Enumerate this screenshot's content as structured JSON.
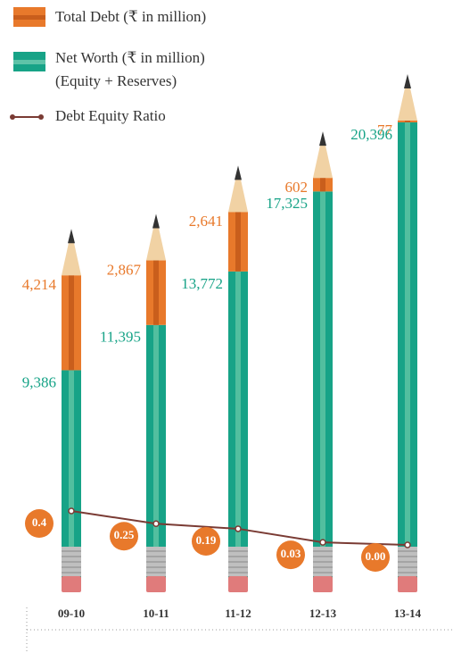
{
  "chart_data": {
    "type": "pencil-bar",
    "categories": [
      "09-10",
      "10-11",
      "11-12",
      "12-13",
      "13-14"
    ],
    "series": [
      {
        "name": "Net Worth (₹ in million)",
        "note": "(Equity + Reserves)",
        "color": "#17a387",
        "values": [
          9386,
          11395,
          13772,
          17325,
          20396
        ],
        "value_labels": [
          "9,386",
          "11,395",
          "13,772",
          "17,325",
          "20,396"
        ]
      },
      {
        "name": "Total Debt (₹ in million)",
        "color": "#e8792b",
        "values": [
          4214,
          2867,
          2641,
          602,
          77
        ],
        "value_labels": [
          "4,214",
          "2,867",
          "2,641",
          "602",
          "77"
        ]
      },
      {
        "name": "Debt Equity Ratio",
        "color": "#7a3b34",
        "type": "line",
        "values": [
          0.4,
          0.25,
          0.19,
          0.03,
          0
        ],
        "value_labels": [
          "0.4",
          "0.25",
          "0.19",
          "0.03",
          "0.00"
        ]
      }
    ]
  }
}
